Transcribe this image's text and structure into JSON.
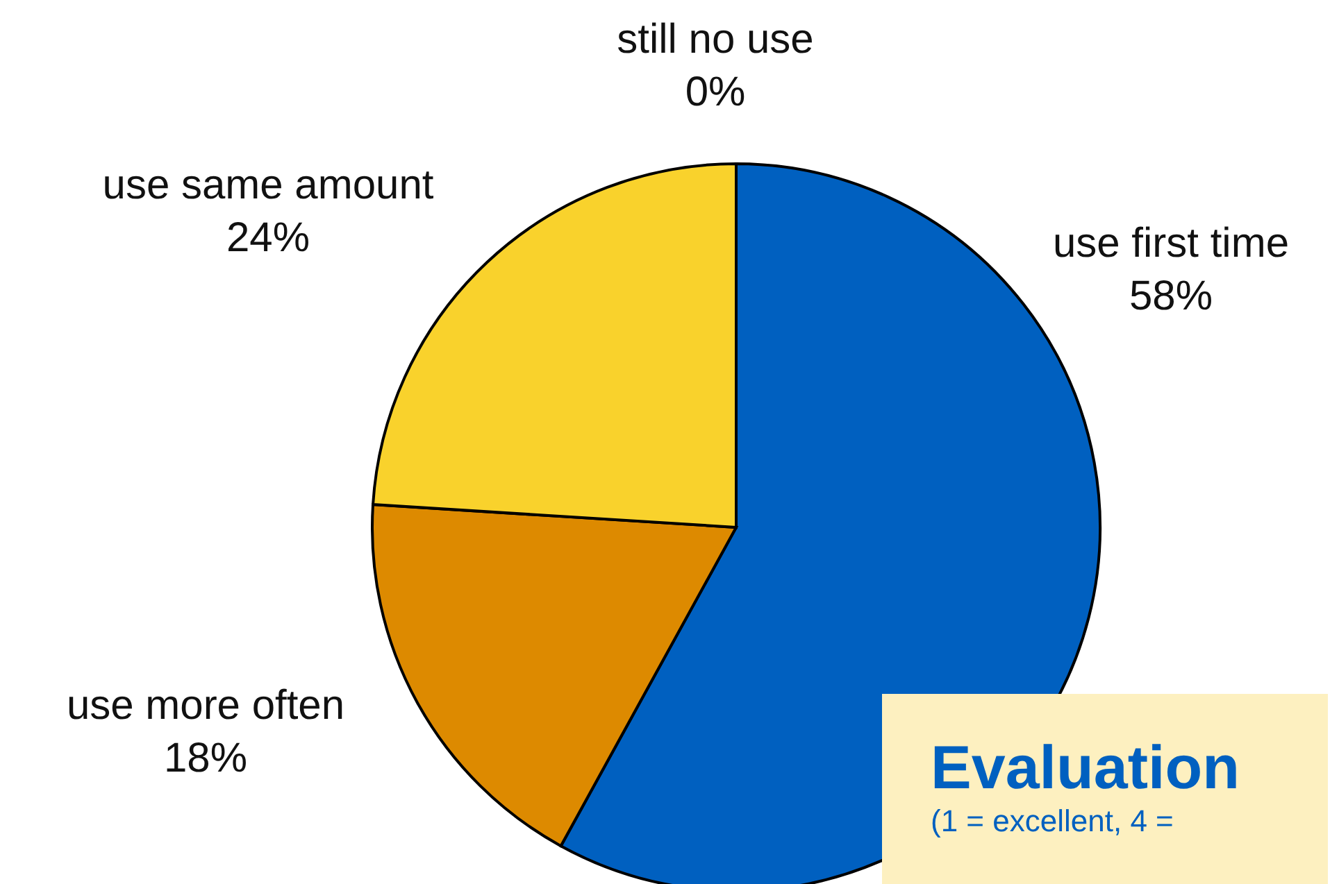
{
  "chart_data": [
    {
      "type": "pie",
      "categories": [
        "use first time",
        "use more often",
        "use same amount",
        "still no use"
      ],
      "values": [
        58,
        18,
        24,
        0
      ],
      "value_labels": [
        "58%",
        "18%",
        "24%",
        "0%"
      ],
      "colors": [
        "#0060c0",
        "#dd8a00",
        "#f9d22c",
        "#333333"
      ]
    },
    {
      "type": "other",
      "title": "Evaluation",
      "subtitle": "(1 = excellent, 4 ="
    }
  ]
}
